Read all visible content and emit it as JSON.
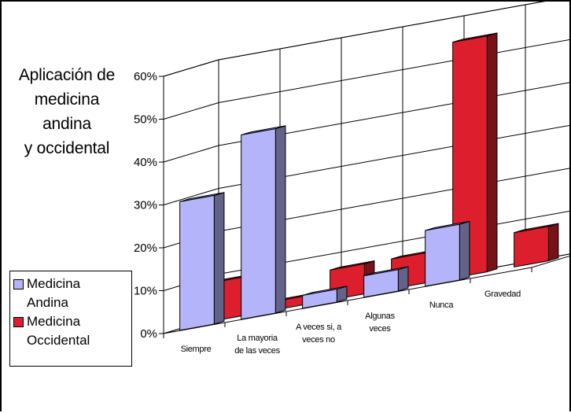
{
  "chart_data": {
    "type": "bar",
    "title": [
      "Aplicación de",
      "medicina",
      "andina",
      "y occidental"
    ],
    "ylim": [
      0,
      60
    ],
    "yticks": [
      "0%",
      "10%",
      "20%",
      "30%",
      "40%",
      "50%",
      "60%"
    ],
    "categories": [
      [
        "Siempre"
      ],
      [
        "La mayoria",
        "de las veces"
      ],
      [
        "A veces si, a",
        "veces no"
      ],
      [
        "Algunas",
        "veces"
      ],
      [
        "Nunca"
      ],
      [
        "Gravedad"
      ]
    ],
    "series": [
      {
        "name": "Medicina Andina",
        "legend": [
          "Medicina",
          "Andina"
        ],
        "color": "#b4b4fa",
        "values": [
          30,
          43,
          3,
          5,
          13,
          0
        ]
      },
      {
        "name": "Medicina Occidental",
        "legend": [
          "Medicina",
          "Occidental"
        ],
        "color": "#dc1e2d",
        "values": [
          9,
          2,
          7,
          7,
          55,
          8
        ]
      }
    ],
    "grid": true,
    "legend_position": "left"
  }
}
